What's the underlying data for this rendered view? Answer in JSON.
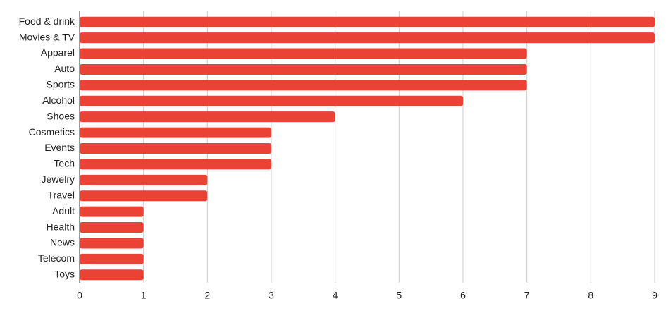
{
  "chart_data": {
    "type": "bar",
    "orientation": "horizontal",
    "categories": [
      "Food & drink",
      "Movies & TV",
      "Apparel",
      "Auto",
      "Sports",
      "Alcohol",
      "Shoes",
      "Cosmetics",
      "Events",
      "Tech",
      "Jewelry",
      "Travel",
      "Adult",
      "Health",
      "News",
      "Telecom",
      "Toys"
    ],
    "values": [
      9,
      9,
      7,
      7,
      7,
      6,
      4,
      3,
      3,
      3,
      2,
      2,
      1,
      1,
      1,
      1,
      1
    ],
    "color": "#ea4335",
    "xlim": [
      0,
      9
    ],
    "xticks": [
      0,
      1,
      2,
      3,
      4,
      5,
      6,
      7,
      8,
      9
    ],
    "grid": true
  }
}
